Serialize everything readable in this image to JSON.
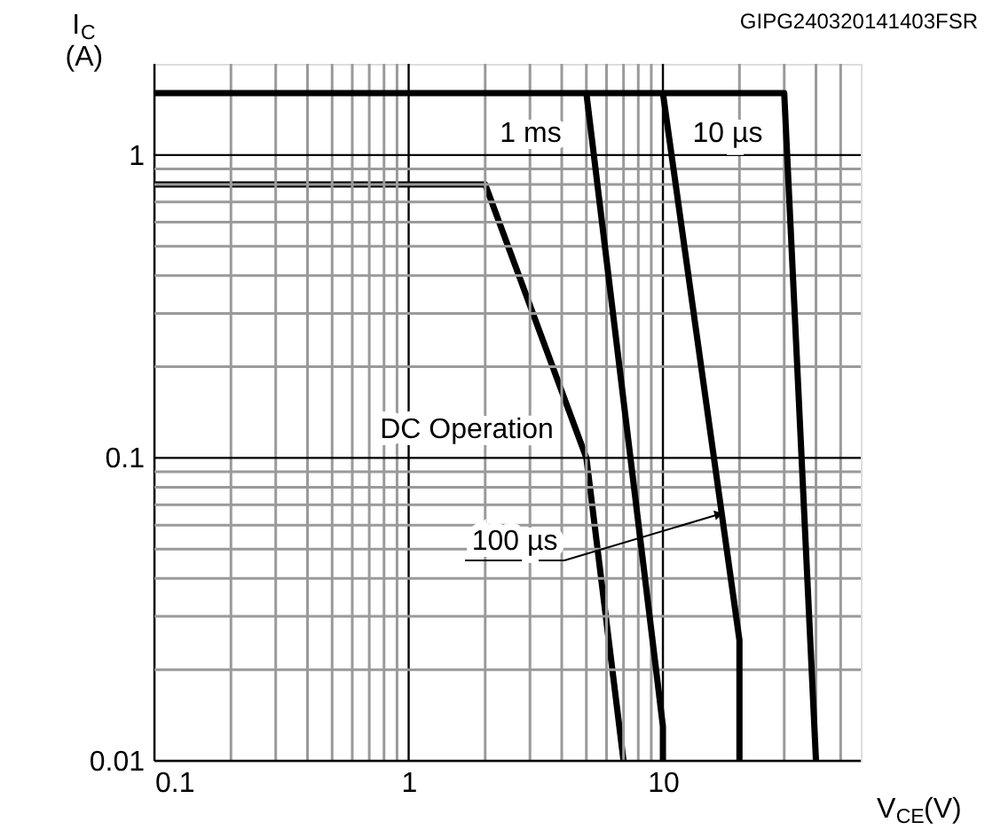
{
  "chart_data": {
    "type": "line",
    "xlabel": "V$_{CE}$(V)",
    "ylabel": "I$_{C}$ (A)",
    "log": "xy",
    "grid": true,
    "line_style": "solid",
    "marker": "none",
    "xlim": [
      0.1,
      60
    ],
    "ylim": [
      0.01,
      2
    ],
    "xticks": [
      0.1,
      {
        "value": 0.2,
        "label": null
      },
      {
        "value": 0.3,
        "label": null
      },
      {
        "value": 0.4,
        "label": null
      },
      {
        "value": 0.5,
        "label": null
      },
      {
        "value": 0.6,
        "label": null
      },
      {
        "value": 0.7,
        "label": null
      },
      {
        "value": 0.8,
        "label": null
      },
      {
        "value": 0.9,
        "label": null
      },
      1,
      {
        "value": 2,
        "label": null
      },
      {
        "value": 3,
        "label": null
      },
      {
        "value": 4,
        "label": null
      },
      {
        "value": 5,
        "label": null
      },
      {
        "value": 6,
        "label": null
      },
      {
        "value": 7,
        "label": null
      },
      {
        "value": 8,
        "label": null
      },
      {
        "value": 9,
        "label": null
      },
      10,
      {
        "value": 20,
        "label": null
      },
      {
        "value": 30,
        "label": null
      },
      {
        "value": 40,
        "label": null
      },
      {
        "value": 50,
        "label": null
      }
    ],
    "yticks": [
      0.01,
      {
        "value": 0.02,
        "label": null
      },
      {
        "value": 0.03,
        "label": null
      },
      {
        "value": 0.04,
        "label": null
      },
      {
        "value": 0.05,
        "label": null
      },
      {
        "value": 0.06,
        "label": null
      },
      {
        "value": 0.07,
        "label": null
      },
      {
        "value": 0.08,
        "label": null
      },
      {
        "value": 0.09,
        "label": null
      },
      0.1,
      {
        "value": 0.2,
        "label": null
      },
      {
        "value": 0.3,
        "label": null
      },
      {
        "value": 0.4,
        "label": null
      },
      {
        "value": 0.5,
        "label": null
      },
      {
        "value": 0.6,
        "label": null
      },
      {
        "value": 0.7,
        "label": null
      },
      {
        "value": 0.8,
        "label": null
      },
      {
        "value": 0.9,
        "label": null
      },
      1
    ],
    "series": [
      {
        "name": "DC Operation",
        "color": "#000000",
        "x": [
          0.1,
          2,
          5,
          7
        ],
        "values": [
          0.8,
          0.8,
          0.1,
          0.01
        ]
      },
      {
        "name": "1 ms",
        "color": "#000000",
        "x": [
          5,
          10,
          10
        ],
        "values": [
          1.6,
          0.013,
          0.01
        ]
      },
      {
        "name": "100 µs",
        "color": "#000000",
        "x": [
          10,
          20,
          20
        ],
        "values": [
          1.6,
          0.025,
          0.01
        ]
      },
      {
        "name": "10 µs",
        "color": "#000000",
        "x": [
          0.1,
          30,
          40
        ],
        "values": [
          1.6,
          1.6,
          0.01
        ]
      }
    ],
    "annotations": [
      "GIPG240320141403FSR"
    ]
  }
}
